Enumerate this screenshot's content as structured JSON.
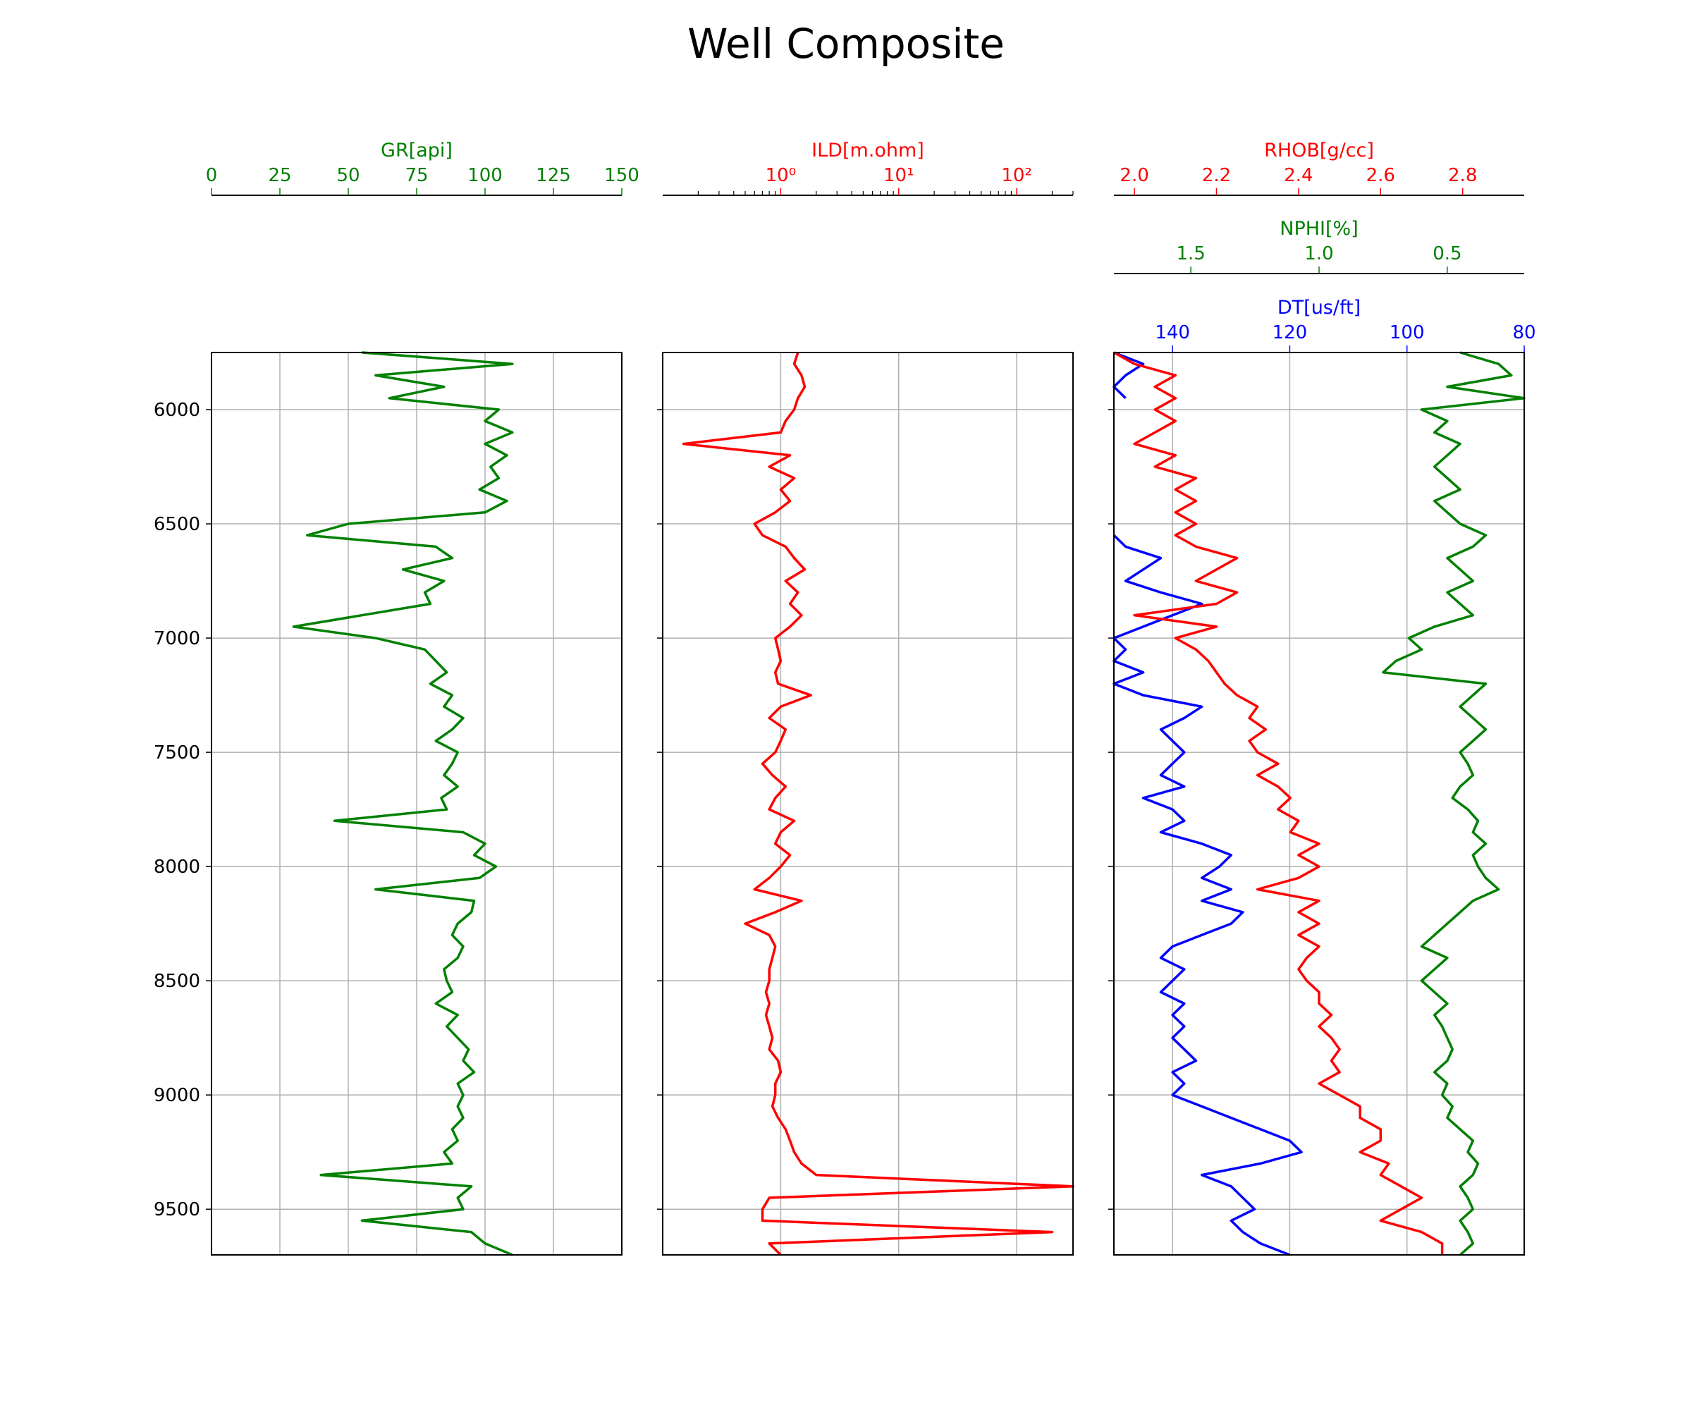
{
  "figure": {
    "title": "Well Composite"
  },
  "colors": {
    "gr": "#008000",
    "ild": "#ff0000",
    "rhob": "#ff0000",
    "nphi": "#008000",
    "dt": "#0000ff",
    "grid": "#b0b0b0",
    "axis": "#000000"
  },
  "depth_axis": {
    "range": [
      5750,
      9700
    ],
    "inverted": true,
    "ticks": [
      "6000",
      "6500",
      "7000",
      "7500",
      "8000",
      "8500",
      "9000",
      "9500"
    ]
  },
  "chart_data": [
    {
      "type": "line",
      "track": "GR",
      "series": [
        {
          "name": "GR[api]",
          "depth": [
            5750,
            5800,
            5850,
            5900,
            5950,
            6000,
            6050,
            6100,
            6150,
            6200,
            6250,
            6300,
            6350,
            6400,
            6450,
            6500,
            6550,
            6600,
            6650,
            6700,
            6750,
            6800,
            6850,
            6900,
            6950,
            7000,
            7050,
            7100,
            7150,
            7200,
            7250,
            7300,
            7350,
            7400,
            7450,
            7500,
            7550,
            7600,
            7650,
            7700,
            7750,
            7800,
            7850,
            7900,
            7950,
            8000,
            8050,
            8100,
            8150,
            8200,
            8250,
            8300,
            8350,
            8400,
            8450,
            8500,
            8550,
            8600,
            8650,
            8700,
            8750,
            8800,
            8850,
            8900,
            8950,
            9000,
            9050,
            9100,
            9150,
            9200,
            9250,
            9300,
            9350,
            9400,
            9450,
            9500,
            9550,
            9600,
            9650,
            9700
          ],
          "values": [
            55,
            110,
            60,
            85,
            65,
            105,
            100,
            110,
            100,
            108,
            102,
            105,
            98,
            108,
            100,
            50,
            35,
            82,
            88,
            70,
            85,
            78,
            80,
            55,
            30,
            60,
            78,
            82,
            86,
            80,
            88,
            85,
            92,
            88,
            82,
            90,
            88,
            85,
            90,
            84,
            86,
            45,
            92,
            100,
            96,
            104,
            98,
            60,
            96,
            95,
            90,
            88,
            92,
            90,
            85,
            86,
            88,
            82,
            90,
            86,
            90,
            94,
            92,
            96,
            90,
            92,
            90,
            92,
            88,
            90,
            85,
            88,
            40,
            95,
            90,
            92,
            55,
            95,
            100,
            110
          ]
        }
      ],
      "xlabel": "GR[api]",
      "xlim": [
        0,
        150
      ],
      "ticks": [
        "0",
        "25",
        "50",
        "75",
        "100",
        "125",
        "150"
      ],
      "grid": true
    },
    {
      "type": "line",
      "track": "ILD",
      "series": [
        {
          "name": "ILD[m.ohm]",
          "depth": [
            5750,
            5800,
            5850,
            5900,
            5950,
            6000,
            6050,
            6100,
            6150,
            6200,
            6250,
            6300,
            6350,
            6400,
            6450,
            6500,
            6550,
            6600,
            6650,
            6700,
            6750,
            6800,
            6850,
            6900,
            6950,
            7000,
            7050,
            7100,
            7150,
            7200,
            7250,
            7300,
            7350,
            7400,
            7450,
            7500,
            7550,
            7600,
            7650,
            7700,
            7750,
            7800,
            7850,
            7900,
            7950,
            8000,
            8050,
            8100,
            8150,
            8200,
            8250,
            8300,
            8350,
            8400,
            8450,
            8500,
            8550,
            8600,
            8650,
            8700,
            8750,
            8800,
            8850,
            8900,
            8950,
            9000,
            9050,
            9100,
            9150,
            9200,
            9250,
            9300,
            9350,
            9400,
            9450,
            9500,
            9550,
            9600,
            9650,
            9700
          ],
          "values": [
            1.4,
            1.3,
            1.5,
            1.6,
            1.4,
            1.3,
            1.1,
            1.0,
            0.15,
            1.2,
            0.8,
            1.3,
            1.0,
            1.2,
            0.9,
            0.6,
            0.7,
            1.1,
            1.3,
            1.6,
            1.1,
            1.4,
            1.2,
            1.5,
            1.2,
            0.9,
            0.95,
            1.0,
            0.9,
            0.95,
            1.8,
            1.0,
            0.8,
            1.1,
            1.0,
            0.9,
            0.7,
            0.85,
            1.1,
            0.9,
            0.8,
            1.3,
            1.0,
            0.9,
            1.2,
            1.0,
            0.8,
            0.6,
            1.5,
            0.9,
            0.5,
            0.8,
            0.9,
            0.85,
            0.8,
            0.8,
            0.75,
            0.8,
            0.75,
            0.8,
            0.85,
            0.8,
            0.95,
            1.0,
            0.9,
            0.9,
            0.85,
            0.95,
            1.1,
            1.2,
            1.3,
            1.5,
            2.0,
            300,
            0.8,
            0.7,
            0.7,
            200,
            0.8,
            1.0
          ]
        }
      ],
      "xlabel": "ILD[m.ohm]",
      "xlim": [
        0.1,
        300
      ],
      "scale": "log",
      "ticks": [
        "10⁰",
        "10¹",
        "10²"
      ],
      "grid": true
    },
    {
      "type": "line",
      "track": "RHOB/NPHI/DT",
      "series": [
        {
          "name": "RHOB[g/cc]",
          "depth": [
            5750,
            5800,
            5850,
            5900,
            5950,
            6000,
            6050,
            6100,
            6150,
            6200,
            6250,
            6300,
            6350,
            6400,
            6450,
            6500,
            6550,
            6600,
            6650,
            6700,
            6750,
            6800,
            6850,
            6900,
            6950,
            7000,
            7050,
            7100,
            7150,
            7200,
            7250,
            7300,
            7350,
            7400,
            7450,
            7500,
            7550,
            7600,
            7650,
            7700,
            7750,
            7800,
            7850,
            7900,
            7950,
            8000,
            8050,
            8100,
            8150,
            8200,
            8250,
            8300,
            8350,
            8400,
            8450,
            8500,
            8550,
            8600,
            8650,
            8700,
            8750,
            8800,
            8850,
            8900,
            8950,
            9000,
            9050,
            9100,
            9150,
            9200,
            9250,
            9300,
            9350,
            9400,
            9450,
            9500,
            9550,
            9600,
            9650,
            9700
          ],
          "values": [
            1.95,
            2.0,
            2.1,
            2.05,
            2.1,
            2.05,
            2.1,
            2.05,
            2.0,
            2.1,
            2.05,
            2.15,
            2.1,
            2.15,
            2.1,
            2.15,
            2.1,
            2.15,
            2.25,
            2.2,
            2.15,
            2.25,
            2.2,
            2.0,
            2.2,
            2.1,
            2.15,
            2.18,
            2.2,
            2.22,
            2.25,
            2.3,
            2.28,
            2.32,
            2.28,
            2.3,
            2.35,
            2.3,
            2.35,
            2.38,
            2.35,
            2.4,
            2.38,
            2.45,
            2.4,
            2.45,
            2.4,
            2.3,
            2.45,
            2.4,
            2.45,
            2.4,
            2.45,
            2.42,
            2.4,
            2.42,
            2.45,
            2.45,
            2.48,
            2.45,
            2.48,
            2.5,
            2.48,
            2.5,
            2.45,
            2.5,
            2.55,
            2.55,
            2.6,
            2.6,
            2.55,
            2.62,
            2.6,
            2.65,
            2.7,
            2.65,
            2.6,
            2.7,
            2.75,
            2.75
          ]
        },
        {
          "name": "NPHI[%]",
          "depth": [
            5750,
            5800,
            5850,
            5900,
            5950,
            6000,
            6050,
            6100,
            6150,
            6200,
            6250,
            6300,
            6350,
            6400,
            6450,
            6500,
            6550,
            6600,
            6650,
            6700,
            6750,
            6800,
            6850,
            6900,
            6950,
            7000,
            7050,
            7100,
            7150,
            7200,
            7250,
            7300,
            7350,
            7400,
            7450,
            7500,
            7550,
            7600,
            7650,
            7700,
            7750,
            7800,
            7850,
            7900,
            7950,
            8000,
            8050,
            8100,
            8150,
            8200,
            8250,
            8300,
            8350,
            8400,
            8450,
            8500,
            8550,
            8600,
            8650,
            8700,
            8750,
            8800,
            8850,
            8900,
            8950,
            9000,
            9050,
            9100,
            9150,
            9200,
            9250,
            9300,
            9350,
            9400,
            9450,
            9500,
            9550,
            9600,
            9650,
            9700
          ],
          "values": [
            0.45,
            0.3,
            0.25,
            0.5,
            0.2,
            0.6,
            0.5,
            0.55,
            0.45,
            0.5,
            0.55,
            0.5,
            0.45,
            0.55,
            0.5,
            0.45,
            0.35,
            0.4,
            0.5,
            0.45,
            0.4,
            0.5,
            0.45,
            0.4,
            0.55,
            0.65,
            0.6,
            0.7,
            0.75,
            0.35,
            0.4,
            0.45,
            0.4,
            0.35,
            0.4,
            0.45,
            0.42,
            0.4,
            0.45,
            0.48,
            0.42,
            0.38,
            0.4,
            0.35,
            0.4,
            0.38,
            0.35,
            0.3,
            0.4,
            0.45,
            0.5,
            0.55,
            0.6,
            0.5,
            0.55,
            0.6,
            0.55,
            0.5,
            0.55,
            0.52,
            0.5,
            0.48,
            0.5,
            0.55,
            0.5,
            0.52,
            0.48,
            0.5,
            0.45,
            0.4,
            0.42,
            0.38,
            0.4,
            0.45,
            0.42,
            0.4,
            0.45,
            0.42,
            0.4,
            0.45
          ]
        },
        {
          "name": "DT[us/ft]",
          "depth": [
            5750,
            5800,
            5850,
            5900,
            5950,
            6000,
            6050,
            6100,
            6150,
            6200,
            6250,
            6300,
            6350,
            6400,
            6450,
            6500,
            6550,
            6600,
            6650,
            6700,
            6750,
            6800,
            6850,
            6900,
            6950,
            7000,
            7050,
            7100,
            7150,
            7200,
            7250,
            7300,
            7350,
            7400,
            7450,
            7500,
            7550,
            7600,
            7650,
            7700,
            7750,
            7800,
            7850,
            7900,
            7950,
            8000,
            8050,
            8100,
            8150,
            8200,
            8250,
            8300,
            8350,
            8400,
            8450,
            8500,
            8550,
            8600,
            8650,
            8700,
            8750,
            8800,
            8850,
            8900,
            8950,
            9000,
            9050,
            9100,
            9150,
            9200,
            9250,
            9300,
            9350,
            9400,
            9450,
            9500,
            9550,
            9600,
            9650,
            9700
          ],
          "values": [
            150,
            145,
            148,
            150,
            148,
            null,
            null,
            null,
            null,
            null,
            null,
            null,
            null,
            null,
            null,
            null,
            150,
            148,
            142,
            145,
            148,
            142,
            135,
            140,
            145,
            150,
            148,
            150,
            145,
            150,
            145,
            135,
            138,
            142,
            140,
            138,
            140,
            142,
            138,
            145,
            140,
            138,
            142,
            135,
            130,
            132,
            135,
            130,
            135,
            128,
            130,
            135,
            140,
            142,
            138,
            140,
            142,
            138,
            140,
            138,
            140,
            138,
            136,
            140,
            138,
            140,
            135,
            130,
            125,
            120,
            118,
            125,
            135,
            130,
            128,
            126,
            130,
            128,
            125,
            120
          ]
        }
      ],
      "axes": [
        {
          "label": "RHOB[g/cc]",
          "xlim": [
            1.95,
            2.95
          ],
          "ticks": [
            "2.0",
            "2.2",
            "2.4",
            "2.6",
            "2.8"
          ]
        },
        {
          "label": "NPHI[%]",
          "xlim": [
            1.8,
            0.2
          ],
          "ticks": [
            "1.5",
            "1.0",
            "0.5"
          ]
        },
        {
          "label": "DT[us/ft]",
          "xlim": [
            150,
            80
          ],
          "ticks": [
            "140",
            "120",
            "100",
            "80"
          ]
        }
      ],
      "grid": true
    }
  ]
}
